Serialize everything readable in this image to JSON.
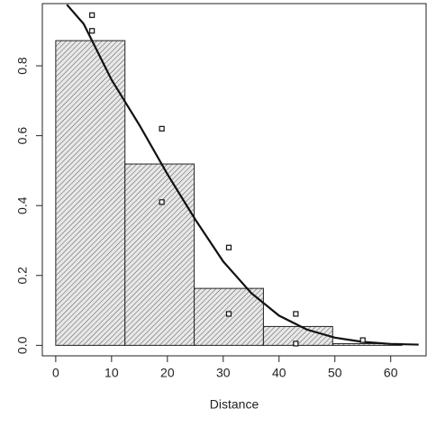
{
  "chart_data": {
    "type": "histogram",
    "xlabel": "Distance",
    "bins": [
      0,
      12.4,
      24.8,
      37.2,
      49.6,
      62
    ],
    "values": [
      0.872,
      0.519,
      0.163,
      0.054,
      0.005
    ],
    "curve": {
      "x": [
        2,
        5,
        10,
        15,
        20,
        25,
        30,
        35,
        40,
        45,
        50,
        55,
        60,
        65
      ],
      "values": [
        0.975,
        0.92,
        0.76,
        0.63,
        0.49,
        0.36,
        0.24,
        0.15,
        0.085,
        0.045,
        0.022,
        0.01,
        0.004,
        0.002
      ]
    },
    "points": {
      "x": [
        6.5,
        6.5,
        19,
        19,
        31,
        31,
        43,
        43,
        55
      ],
      "values": [
        0.945,
        0.9,
        0.62,
        0.41,
        0.28,
        0.09,
        0.09,
        0.005,
        0.015
      ]
    },
    "xlim": [
      -2.4,
      66.5
    ],
    "ylim": [
      -0.03,
      0.978
    ],
    "xticks": [
      0,
      10,
      20,
      30,
      40,
      50,
      60
    ],
    "yticks": [
      {
        "value": 0,
        "label": "0.0"
      },
      0.2,
      0.4,
      0.6,
      0.8
    ]
  }
}
